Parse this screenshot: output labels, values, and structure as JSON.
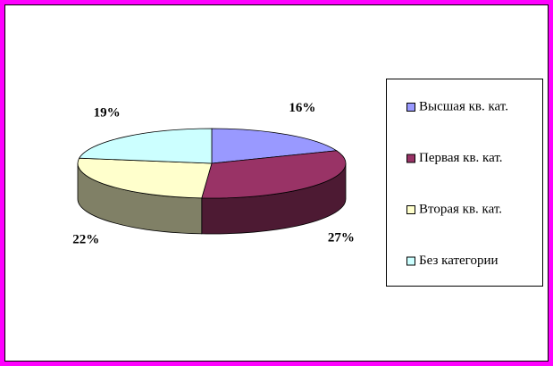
{
  "chart_data": {
    "type": "pie3d",
    "categories": [
      "Высшая кв. кат.",
      "Первая кв. кат.",
      "Вторая кв. кат.",
      "Без категории"
    ],
    "values": [
      16,
      27,
      22,
      19
    ],
    "value_labels": [
      "16%",
      "27%",
      "22%",
      "19%"
    ],
    "colors": [
      "#9999ff",
      "#993366",
      "#ffffcc",
      "#ccffff"
    ],
    "legend": "right"
  }
}
